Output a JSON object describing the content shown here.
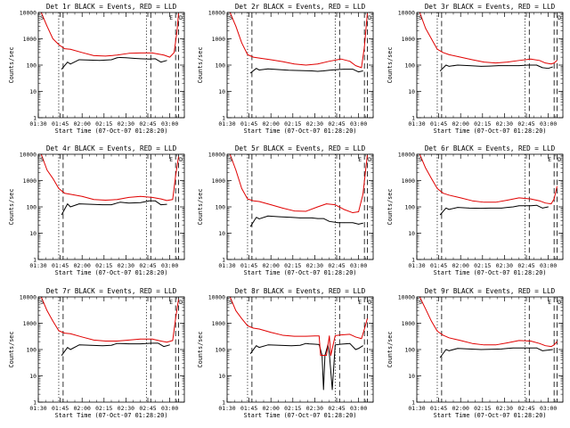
{
  "figure": {
    "title_template": "BLACK = Events, RED = LLD"
  },
  "chart_data": {
    "type": "line",
    "layout": "3x3 grid",
    "yscale": "log",
    "ylim": [
      1,
      10000
    ],
    "y_tick_labels": [
      "1",
      "10",
      "100",
      "1000",
      "10000"
    ],
    "xlim_min": [
      90,
      190
    ],
    "x_tick_labels": [
      "01:30",
      "01:45",
      "02:00",
      "02:15",
      "02:30",
      "02:45",
      "03:00"
    ],
    "x_tick_minutes": [
      90,
      105,
      120,
      135,
      150,
      165,
      180
    ],
    "xlabel": "Start Time (07-Oct-07 01:28:20)",
    "ylabel": "Counts/sec",
    "colors": {
      "events": "#000000",
      "lld": "#e00000"
    },
    "markers": {
      "S": "S",
      "E": "E",
      "D": "D"
    },
    "panels": [
      {
        "title": "Det 1r BLACK = Events, RED = LLD",
        "show_E": true,
        "events": {
          "minutes": [
            106,
            110,
            112,
            118,
            125,
            132,
            140,
            144,
            146,
            150,
            156,
            160,
            166,
            170,
            174,
            178
          ],
          "values": [
            70,
            130,
            110,
            160,
            155,
            150,
            160,
            190,
            195,
            190,
            180,
            175,
            170,
            175,
            130,
            150
          ]
        },
        "lld": {
          "minutes": [
            92,
            96,
            100,
            104,
            108,
            112,
            120,
            128,
            136,
            144,
            152,
            160,
            168,
            176,
            180,
            183,
            185,
            186
          ],
          "values": [
            10000,
            3000,
            1000,
            600,
            420,
            400,
            300,
            230,
            220,
            240,
            280,
            290,
            290,
            240,
            200,
            300,
            2000,
            9000
          ]
        }
      },
      {
        "title": "Det 2r BLACK = Events, RED = LLD",
        "show_E": false,
        "events": {
          "minutes": [
            106,
            110,
            112,
            118,
            125,
            132,
            140,
            148,
            152,
            156,
            160,
            166,
            170,
            176,
            180,
            183
          ],
          "values": [
            50,
            75,
            65,
            72,
            68,
            64,
            62,
            60,
            58,
            60,
            64,
            68,
            70,
            70,
            55,
            60
          ]
        },
        "lld": {
          "minutes": [
            92,
            96,
            100,
            104,
            108,
            112,
            120,
            128,
            136,
            144,
            152,
            160,
            168,
            174,
            178,
            182,
            184,
            186
          ],
          "values": [
            10000,
            3000,
            700,
            250,
            200,
            185,
            160,
            135,
            110,
            100,
            110,
            140,
            170,
            140,
            95,
            80,
            500,
            9000
          ]
        }
      },
      {
        "title": "Det 3r BLACK = Events, RED = LLD",
        "show_E": false,
        "events": {
          "minutes": [
            106,
            110,
            112,
            118,
            126,
            134,
            140,
            146,
            152,
            160,
            166,
            172,
            176,
            180,
            183
          ],
          "values": [
            60,
            100,
            90,
            100,
            95,
            90,
            92,
            95,
            95,
            95,
            100,
            100,
            80,
            75,
            85
          ]
        },
        "lld": {
          "minutes": [
            92,
            96,
            100,
            104,
            108,
            112,
            120,
            128,
            136,
            144,
            152,
            160,
            168,
            174,
            178,
            182,
            184,
            186
          ],
          "values": [
            10000,
            2500,
            1000,
            400,
            300,
            250,
            200,
            160,
            130,
            120,
            130,
            150,
            170,
            150,
            120,
            110,
            120,
            150
          ]
        }
      },
      {
        "title": "Det 4r BLACK = Events, RED = LLD",
        "show_E": true,
        "events": {
          "minutes": [
            106,
            110,
            112,
            118,
            126,
            134,
            140,
            144,
            146,
            152,
            160,
            166,
            170,
            174,
            178
          ],
          "values": [
            50,
            130,
            100,
            130,
            125,
            120,
            120,
            140,
            150,
            140,
            145,
            170,
            170,
            120,
            125
          ]
        },
        "lld": {
          "minutes": [
            92,
            96,
            100,
            104,
            108,
            112,
            120,
            128,
            136,
            144,
            152,
            160,
            168,
            174,
            178,
            182,
            184,
            186
          ],
          "values": [
            10000,
            2500,
            1200,
            500,
            330,
            300,
            250,
            190,
            180,
            190,
            230,
            250,
            230,
            200,
            175,
            190,
            1500,
            8000
          ]
        }
      },
      {
        "title": "Det 5r BLACK = Events, RED = LLD",
        "show_E": true,
        "events": {
          "minutes": [
            106,
            110,
            112,
            118,
            126,
            134,
            140,
            148,
            152,
            156,
            160,
            166,
            170,
            176,
            180,
            183
          ],
          "values": [
            18,
            40,
            35,
            45,
            42,
            40,
            38,
            38,
            36,
            36,
            28,
            25,
            25,
            25,
            22,
            24
          ]
        },
        "lld": {
          "minutes": [
            92,
            96,
            100,
            104,
            108,
            112,
            120,
            128,
            136,
            144,
            152,
            158,
            164,
            170,
            176,
            180,
            183,
            185,
            186
          ],
          "values": [
            10000,
            2500,
            500,
            200,
            170,
            160,
            120,
            90,
            70,
            68,
            100,
            130,
            120,
            80,
            60,
            65,
            300,
            3000,
            9000
          ]
        }
      },
      {
        "title": "Det 6r BLACK = Events, RED = LLD",
        "show_E": true,
        "events": {
          "minutes": [
            106,
            110,
            112,
            118,
            126,
            134,
            140,
            148,
            152,
            156,
            160,
            168,
            172,
            176,
            180
          ],
          "values": [
            50,
            90,
            80,
            95,
            90,
            88,
            90,
            90,
            95,
            100,
            110,
            110,
            115,
            90,
            100
          ]
        },
        "lld": {
          "minutes": [
            92,
            96,
            100,
            104,
            108,
            112,
            120,
            128,
            136,
            144,
            152,
            160,
            168,
            174,
            178,
            182,
            184,
            186
          ],
          "values": [
            10000,
            3000,
            1200,
            500,
            330,
            280,
            220,
            170,
            150,
            150,
            180,
            220,
            200,
            170,
            140,
            130,
            200,
            600
          ]
        }
      },
      {
        "title": "Det 7r BLACK = Events, RED = LLD",
        "show_E": true,
        "events": {
          "minutes": [
            106,
            110,
            112,
            118,
            126,
            134,
            140,
            144,
            146,
            152,
            160,
            168,
            172,
            176,
            180
          ],
          "values": [
            60,
            120,
            100,
            150,
            145,
            140,
            145,
            170,
            170,
            165,
            165,
            175,
            175,
            130,
            150
          ]
        },
        "lld": {
          "minutes": [
            92,
            96,
            100,
            104,
            108,
            112,
            120,
            128,
            136,
            144,
            152,
            160,
            168,
            174,
            178,
            182,
            184,
            186
          ],
          "values": [
            10000,
            3000,
            1200,
            520,
            420,
            400,
            300,
            230,
            210,
            210,
            230,
            250,
            250,
            210,
            190,
            220,
            1500,
            8000
          ]
        }
      },
      {
        "title": "Det 8r BLACK = Events, RED = LLD",
        "show_E": true,
        "events": {
          "minutes": [
            106,
            110,
            112,
            118,
            126,
            134,
            140,
            144,
            146,
            150,
            153,
            155,
            156,
            157,
            159,
            160,
            162,
            164,
            168,
            174,
            178,
            180,
            183
          ],
          "values": [
            70,
            140,
            120,
            150,
            145,
            140,
            145,
            170,
            165,
            160,
            155,
            60,
            3,
            60,
            150,
            70,
            3,
            150,
            160,
            170,
            100,
            110,
            140
          ]
        },
        "lld": {
          "minutes": [
            92,
            96,
            100,
            104,
            108,
            112,
            120,
            128,
            136,
            144,
            150,
            153,
            154,
            158,
            160,
            161,
            164,
            168,
            174,
            178,
            182,
            184,
            186
          ],
          "values": [
            10000,
            3000,
            1500,
            800,
            650,
            600,
            450,
            350,
            320,
            320,
            330,
            330,
            60,
            60,
            330,
            60,
            340,
            360,
            380,
            300,
            260,
            600,
            1500
          ]
        }
      },
      {
        "title": "Det 9r BLACK = Events, RED = LLD",
        "show_E": true,
        "events": {
          "minutes": [
            106,
            110,
            112,
            118,
            126,
            134,
            140,
            148,
            152,
            156,
            160,
            168,
            172,
            176,
            180,
            183
          ],
          "values": [
            50,
            100,
            90,
            110,
            105,
            100,
            102,
            105,
            110,
            115,
            115,
            115,
            115,
            90,
            95,
            100
          ]
        },
        "lld": {
          "minutes": [
            92,
            96,
            100,
            104,
            108,
            112,
            120,
            128,
            136,
            144,
            152,
            160,
            168,
            174,
            178,
            182,
            184,
            186
          ],
          "values": [
            10000,
            3500,
            1200,
            500,
            350,
            280,
            220,
            170,
            150,
            150,
            180,
            220,
            210,
            170,
            140,
            130,
            150,
            200
          ]
        }
      }
    ]
  }
}
